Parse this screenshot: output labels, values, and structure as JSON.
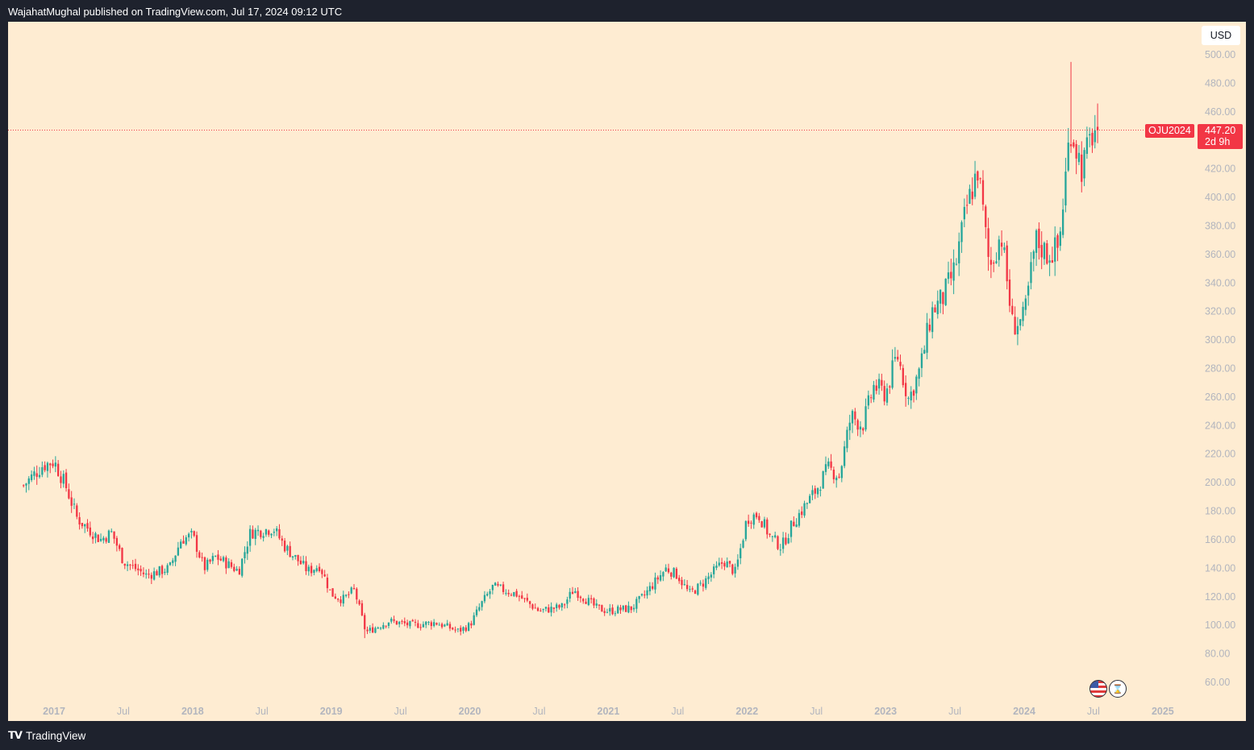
{
  "header": {
    "published_text": "WajahatMughal published on TradingView.com, Jul 17, 2024 09:12 UTC"
  },
  "footer": {
    "logo_text": "TradingView",
    "logo_icon": "tradingview-logo-icon"
  },
  "price_scale": {
    "currency": "USD"
  },
  "current_price": {
    "symbol": "OJU2024",
    "price": "447.20",
    "countdown": "2d 9h",
    "color": "#f23645"
  },
  "colors": {
    "up": "#26a69a",
    "down": "#f23645",
    "background": "#feecd2",
    "frame": "#1e222d"
  },
  "icons": [
    "us-flag-icon",
    "hourglass-icon"
  ],
  "chart_data": {
    "type": "candlestick",
    "symbol": "OJU2024",
    "interval": "weekly",
    "ylim": [
      50,
      510
    ],
    "y_ticks": [
      "60.00",
      "80.00",
      "100.00",
      "120.00",
      "140.00",
      "160.00",
      "180.00",
      "200.00",
      "220.00",
      "240.00",
      "260.00",
      "280.00",
      "300.00",
      "320.00",
      "340.00",
      "360.00",
      "380.00",
      "400.00",
      "420.00",
      "440.00",
      "460.00",
      "480.00",
      "500.00"
    ],
    "x_ticks": [
      {
        "label": "2017",
        "major": true,
        "t": 2017.0
      },
      {
        "label": "Jul",
        "major": false,
        "t": 2017.5
      },
      {
        "label": "2018",
        "major": true,
        "t": 2018.0
      },
      {
        "label": "Jul",
        "major": false,
        "t": 2018.5
      },
      {
        "label": "2019",
        "major": true,
        "t": 2019.0
      },
      {
        "label": "Jul",
        "major": false,
        "t": 2019.5
      },
      {
        "label": "2020",
        "major": true,
        "t": 2020.0
      },
      {
        "label": "Jul",
        "major": false,
        "t": 2020.5
      },
      {
        "label": "2021",
        "major": true,
        "t": 2021.0
      },
      {
        "label": "Jul",
        "major": false,
        "t": 2021.5
      },
      {
        "label": "2022",
        "major": true,
        "t": 2022.0
      },
      {
        "label": "Jul",
        "major": false,
        "t": 2022.5
      },
      {
        "label": "2023",
        "major": true,
        "t": 2023.0
      },
      {
        "label": "Jul",
        "major": false,
        "t": 2023.5
      },
      {
        "label": "2024",
        "major": true,
        "t": 2024.0
      },
      {
        "label": "Jul",
        "major": false,
        "t": 2024.5
      },
      {
        "label": "2025",
        "major": true,
        "t": 2025.0
      }
    ],
    "close_path": [
      [
        "2016-10",
        195
      ],
      [
        "2016-12",
        212
      ],
      [
        "2017-01",
        215
      ],
      [
        "2017-02",
        198
      ],
      [
        "2017-03",
        175
      ],
      [
        "2017-05",
        160
      ],
      [
        "2017-06",
        165
      ],
      [
        "2017-07",
        145
      ],
      [
        "2017-09",
        135
      ],
      [
        "2017-11",
        140
      ],
      [
        "2017-12",
        160
      ],
      [
        "2018-01",
        163
      ],
      [
        "2018-02",
        140
      ],
      [
        "2018-03",
        148
      ],
      [
        "2018-05",
        138
      ],
      [
        "2018-06",
        165
      ],
      [
        "2018-08",
        168
      ],
      [
        "2018-09",
        155
      ],
      [
        "2018-11",
        138
      ],
      [
        "2018-12",
        142
      ],
      [
        "2019-01",
        122
      ],
      [
        "2019-02",
        118
      ],
      [
        "2019-03",
        125
      ],
      [
        "2019-04",
        95
      ],
      [
        "2019-06",
        103
      ],
      [
        "2019-08",
        100
      ],
      [
        "2019-10",
        102
      ],
      [
        "2019-12",
        96
      ],
      [
        "2020-01",
        100
      ],
      [
        "2020-02",
        115
      ],
      [
        "2020-03",
        127
      ],
      [
        "2020-05",
        122
      ],
      [
        "2020-07",
        110
      ],
      [
        "2020-09",
        113
      ],
      [
        "2020-10",
        125
      ],
      [
        "2020-12",
        112
      ],
      [
        "2021-01",
        110
      ],
      [
        "2021-03",
        112
      ],
      [
        "2021-04",
        120
      ],
      [
        "2021-06",
        140
      ],
      [
        "2021-07",
        135
      ],
      [
        "2021-08",
        122
      ],
      [
        "2021-09",
        128
      ],
      [
        "2021-11",
        145
      ],
      [
        "2021-12",
        137
      ],
      [
        "2022-01",
        175
      ],
      [
        "2022-02",
        178
      ],
      [
        "2022-03",
        162
      ],
      [
        "2022-04",
        155
      ],
      [
        "2022-05",
        172
      ],
      [
        "2022-07",
        195
      ],
      [
        "2022-08",
        210
      ],
      [
        "2022-09",
        205
      ],
      [
        "2022-10",
        247
      ],
      [
        "2022-11",
        240
      ],
      [
        "2022-12",
        268
      ],
      [
        "2023-01",
        262
      ],
      [
        "2023-02",
        290
      ],
      [
        "2023-03",
        258
      ],
      [
        "2023-04",
        280
      ],
      [
        "2023-05",
        320
      ],
      [
        "2023-06",
        330
      ],
      [
        "2023-07",
        350
      ],
      [
        "2023-08",
        392
      ],
      [
        "2023-09",
        420
      ],
      [
        "2023-10",
        350
      ],
      [
        "2023-11",
        375
      ],
      [
        "2023-12",
        310
      ],
      [
        "2024-01",
        315
      ],
      [
        "2024-02",
        370
      ],
      [
        "2024-03",
        360
      ],
      [
        "2024-04",
        365
      ],
      [
        "2024-05",
        450
      ],
      [
        "2024-06",
        420
      ],
      [
        "2024-07",
        447
      ]
    ],
    "notable_points": {
      "high": {
        "date": "2024-05",
        "value": 495
      },
      "low": {
        "date": "2019-04",
        "value": 91
      },
      "last_close": 447.2
    }
  }
}
